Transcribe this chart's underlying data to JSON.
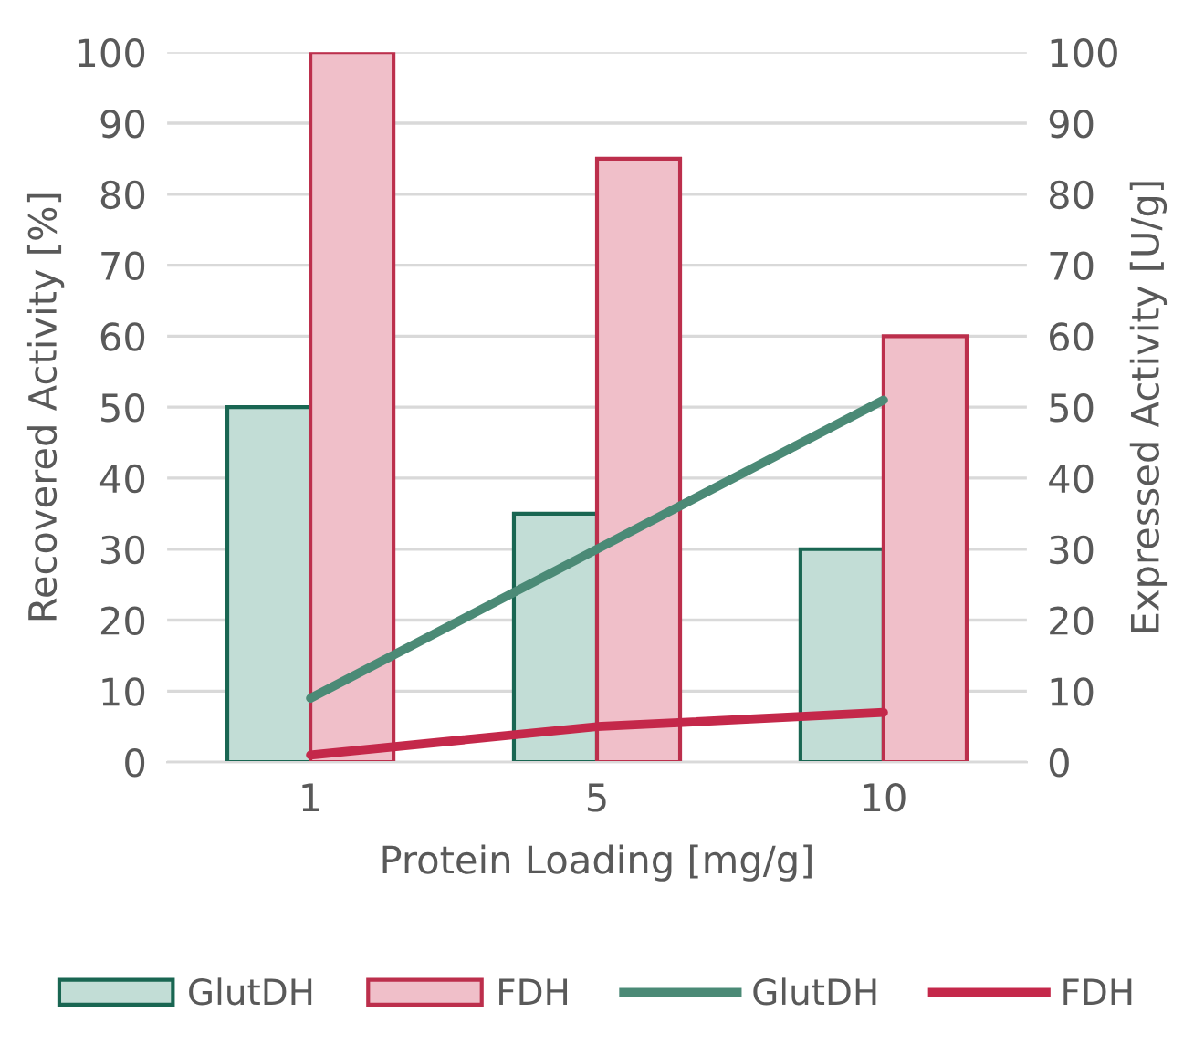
{
  "chart_data": {
    "type": "bar",
    "xlabel": "Protein Loading [mg/g]",
    "ylabel": "Recovered Activity [%]",
    "y2label": "Expressed Activity [U/g]",
    "categories": [
      "1",
      "5",
      "10"
    ],
    "series": [
      {
        "name": "GlutDH",
        "type": "bar",
        "color": "#c2ddd6",
        "values": [
          50,
          35,
          30
        ]
      },
      {
        "name": "FDH",
        "type": "bar",
        "color": "#f0bfc9",
        "values": [
          100,
          85,
          60
        ]
      },
      {
        "name": "GlutDH",
        "type": "line",
        "axis": "y2",
        "color": "#4b8a76",
        "values": [
          9,
          30,
          51
        ]
      },
      {
        "name": "FDH",
        "type": "line",
        "axis": "y2",
        "color": "#c4284a",
        "values": [
          1,
          5,
          7
        ]
      }
    ],
    "ylim": [
      0,
      100
    ],
    "yticks": [
      0,
      10,
      20,
      30,
      40,
      50,
      60,
      70,
      80,
      90,
      100
    ],
    "y2lim": [
      0,
      100
    ],
    "y2ticks": [
      0,
      10,
      20,
      30,
      40,
      50,
      60,
      70,
      80,
      90,
      100
    ],
    "grid": "y",
    "legend": "bottom",
    "line_style": "solid",
    "marker": "none"
  }
}
